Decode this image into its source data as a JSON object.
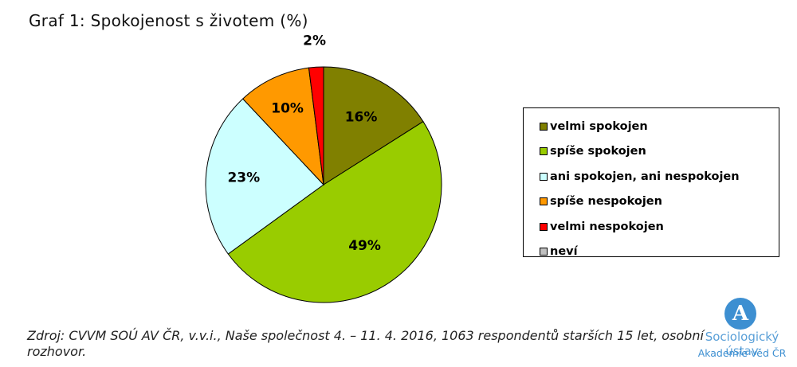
{
  "title": "Graf 1: Spokojenost s životem (%)",
  "chart_data": {
    "type": "pie",
    "title": "Graf 1: Spokojenost s životem (%)",
    "legend_position": "right",
    "slices": [
      {
        "label": "velmi spokojen",
        "value": 16,
        "display": "16%",
        "color": "#808000"
      },
      {
        "label": "spíše spokojen",
        "value": 49,
        "display": "49%",
        "color": "#99cc00"
      },
      {
        "label": "ani spokojen, ani nespokojen",
        "value": 23,
        "display": "23%",
        "color": "#ccffff"
      },
      {
        "label": "spíše nespokojen",
        "value": 10,
        "display": "10%",
        "color": "#ff9900"
      },
      {
        "label": "velmi nespokojen",
        "value": 2,
        "display": "2%",
        "color": "#ff0000"
      },
      {
        "label": "neví",
        "value": 0,
        "display": "",
        "color": "#c0c0c0"
      }
    ]
  },
  "source_text": "Zdroj: CVVM SOÚ AV ČR, v.v.i., Naše společnost 4. – 11. 4. 2016, 1063 respondentů starších 15 let, osobní rozhovor.",
  "logo": {
    "glyph": "A",
    "line1": "Sociologický ústav",
    "line2": "Akademie věd ČR"
  }
}
